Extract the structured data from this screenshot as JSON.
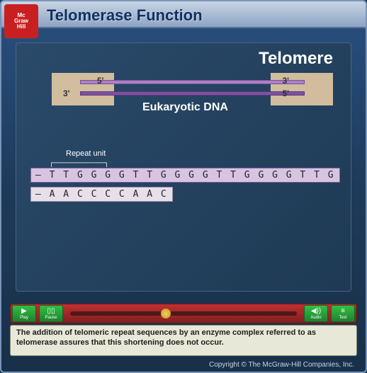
{
  "logo": {
    "line1": "Mc",
    "line2": "Graw",
    "line3": "Hill"
  },
  "title": "Telomerase Function",
  "telomere_label": "Telomere",
  "dna": {
    "label_5_left": "5'",
    "label_3_right": "3'",
    "label_3_left": "3'",
    "label_5_right": "5'",
    "euk_label": "Eukaryotic DNA",
    "telomere_box_color": "#f0d4a8",
    "strand_top_color": "#b080c0",
    "strand_bottom_color": "#8050a0"
  },
  "repeat": {
    "label": "Repeat unit",
    "seq_top": "– T T G G G G T T G G G G T T G G G G T T G",
    "seq_bottom": "– A A C C C C A A C",
    "box_top_color": "#d8c4e0",
    "box_bottom_color": "#e8e0e8"
  },
  "controls": {
    "play": {
      "icon": "▶",
      "label": "Play"
    },
    "pause": {
      "icon": "▯▯",
      "label": "Pause"
    },
    "audio": {
      "icon": "◀))",
      "label": "Audio"
    },
    "text": {
      "icon": "≡",
      "label": "Text"
    },
    "timeline_position_pct": 40,
    "bar_color": "#a02828",
    "btn_color": "#28a038"
  },
  "caption": "The addition of telomeric repeat sequences by an enzyme complex referred to as telomerase assures that this shortening does not occur.",
  "copyright": "Copyright © The McGraw-Hill Companies, Inc.",
  "colors": {
    "page_bg_top": "#2a5080",
    "page_bg_bottom": "#18304a",
    "header_top": "#c8d4e4",
    "header_bottom": "#8ca4c4",
    "content_bg": "#223e5c",
    "logo_bg": "#c82020",
    "caption_bg": "#e8e8d8"
  }
}
